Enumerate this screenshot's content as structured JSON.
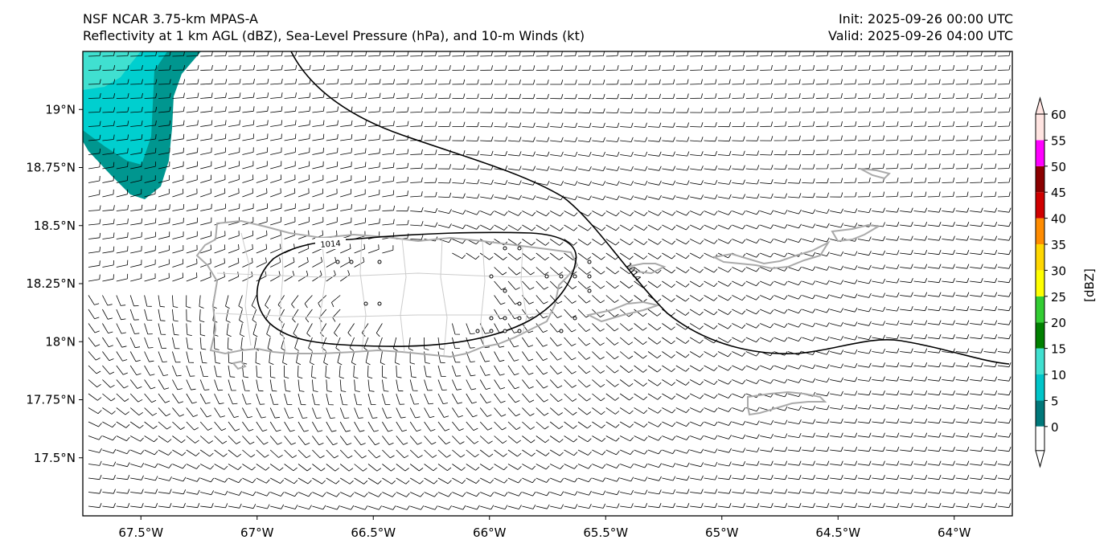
{
  "header": {
    "model_title": "NSF NCAR 3.75-km MPAS-A",
    "fields_title": "Reflectivity at 1 km AGL (dBZ), Sea-Level Pressure (hPa), and 10-m Winds (kt)",
    "init_label": "Init: 2025-09-26 00:00 UTC",
    "valid_label": "Valid: 2025-09-26 04:00 UTC"
  },
  "map": {
    "lon_range": [
      -67.75,
      -63.75
    ],
    "lat_range": [
      17.25,
      19.25
    ],
    "lat_ticks": [
      {
        "value": 19.0,
        "label": "19°N"
      },
      {
        "value": 18.75,
        "label": "18.75°N"
      },
      {
        "value": 18.5,
        "label": "18.5°N"
      },
      {
        "value": 18.25,
        "label": "18.25°N"
      },
      {
        "value": 18.0,
        "label": "18°N"
      },
      {
        "value": 17.75,
        "label": "17.75°N"
      },
      {
        "value": 17.5,
        "label": "17.5°N"
      }
    ],
    "lon_ticks": [
      {
        "value": -67.5,
        "label": "67.5°W"
      },
      {
        "value": -67.0,
        "label": "67°W"
      },
      {
        "value": -66.5,
        "label": "66.5°W"
      },
      {
        "value": -66.0,
        "label": "66°W"
      },
      {
        "value": -65.5,
        "label": "65.5°W"
      },
      {
        "value": -65.0,
        "label": "65°W"
      },
      {
        "value": -64.5,
        "label": "64.5°W"
      },
      {
        "value": -64.0,
        "label": "64°W"
      }
    ],
    "isobar_label": "1014",
    "isobar_label_east": "1014",
    "features": {
      "land_color": "#aaaaaa",
      "isobar_color": "#000000",
      "barb_color": "#000000"
    }
  },
  "colorbar": {
    "label": "[dBZ]",
    "levels": [
      0,
      5,
      10,
      15,
      20,
      25,
      30,
      35,
      40,
      45,
      50,
      55,
      60
    ],
    "colors": [
      "#00787a",
      "#00c5c9",
      "#40e0d0",
      "#008000",
      "#32cd32",
      "#ffff00",
      "#ffd700",
      "#ff8c00",
      "#d00000",
      "#8b0000",
      "#ff00ff",
      "#ffe4e1"
    ],
    "tick_labels": [
      "0",
      "5",
      "10",
      "15",
      "20",
      "25",
      "30",
      "35",
      "40",
      "45",
      "50",
      "55",
      "60"
    ]
  }
}
